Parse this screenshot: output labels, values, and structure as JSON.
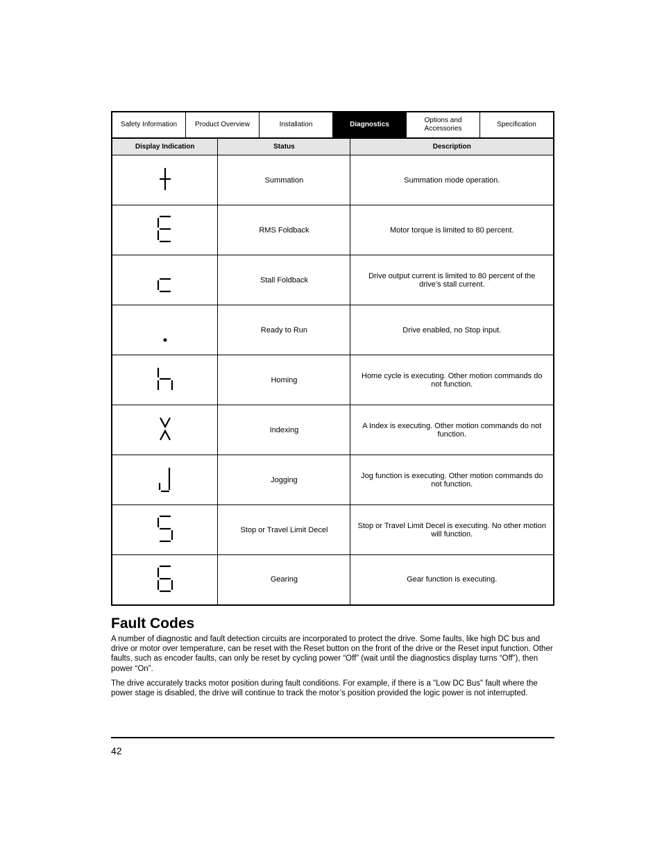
{
  "tabs": [
    {
      "label": "Safety Information",
      "active": false
    },
    {
      "label": "Product Overview",
      "active": false
    },
    {
      "label": "Installation",
      "active": false
    },
    {
      "label": "Diagnostics",
      "active": true
    },
    {
      "label": "Options and Accessories",
      "active": false
    },
    {
      "label": "Specification",
      "active": false
    }
  ],
  "table": {
    "headers": [
      "Display Indication",
      "Status",
      "Description"
    ],
    "rows": [
      {
        "glyph": "t",
        "status": "Summation",
        "desc": "Summation mode operation."
      },
      {
        "glyph": "E",
        "status": "RMS Foldback",
        "desc": "Motor torque is limited to 80 percent."
      },
      {
        "glyph": "c",
        "status": "Stall Foldback",
        "desc": "Drive output current is limited to 80 percent of the drive’s stall current."
      },
      {
        "glyph": "dot",
        "status": "Ready to Run",
        "desc": "Drive enabled, no Stop input."
      },
      {
        "glyph": "h",
        "status": "Homing",
        "desc": "Home cycle is executing. Other motion commands do not function."
      },
      {
        "glyph": "X",
        "status": "Indexing",
        "desc": "A Index is executing. Other motion commands do not function."
      },
      {
        "glyph": "J",
        "status": "Jogging",
        "desc": "Jog function is executing. Other motion commands do not function."
      },
      {
        "glyph": "5",
        "status": "Stop or Travel Limit Decel",
        "desc": "Stop or Travel Limit Decel is executing. No other motion will function."
      },
      {
        "glyph": "6",
        "status": "Gearing",
        "desc": "Gear function is executing."
      }
    ]
  },
  "section_title": "Fault Codes",
  "para1": "A number of diagnostic and fault detection circuits are incorporated to protect the drive. Some faults, like high DC bus and drive or motor over temperature, can be reset with the Reset button on the front of the drive or the Reset input function. Other faults, such as encoder faults, can only be reset by cycling power “Off” (wait until the diagnostics display turns “Off”), then power “On”.",
  "para2": "The drive accurately tracks motor position during fault conditions. For example, if there is a \"Low DC Bus\" fault where the power stage is disabled, the drive will continue to track the motor’s position provided the logic power is not interrupted.",
  "page_number": "42",
  "style": {
    "seg_stroke": "#000000",
    "seg_width": 2.2,
    "seg_size": 40
  }
}
